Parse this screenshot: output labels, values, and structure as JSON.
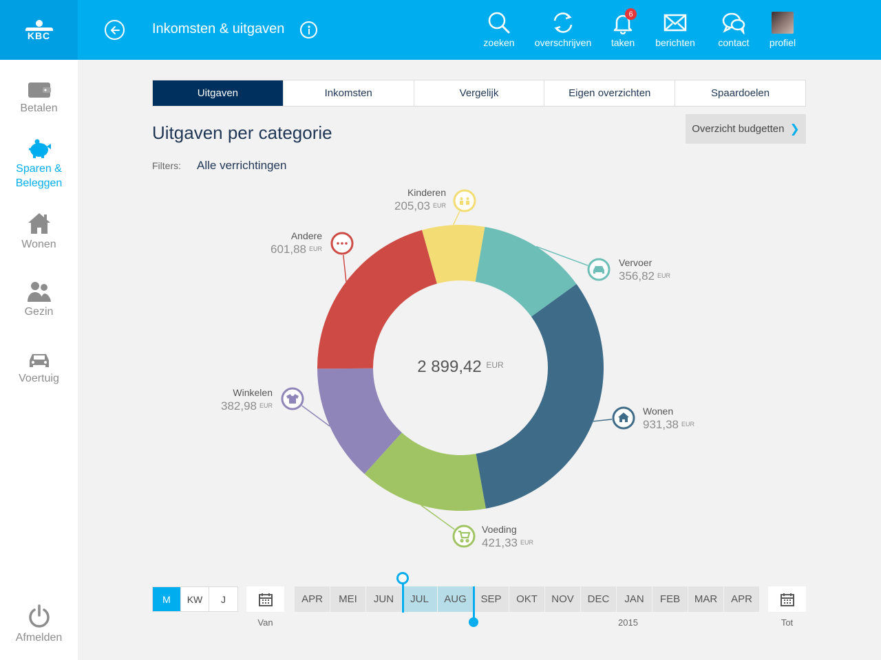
{
  "header": {
    "logo_text": "KBC",
    "title": "Inkomsten & uitgaven",
    "nav": [
      {
        "label": "zoeken",
        "icon": "search-icon"
      },
      {
        "label": "overschrijven",
        "icon": "transfer-icon"
      },
      {
        "label": "taken",
        "icon": "bell-icon",
        "badge": "6"
      },
      {
        "label": "berichten",
        "icon": "mail-icon"
      },
      {
        "label": "contact",
        "icon": "chat-icon"
      },
      {
        "label": "profiel",
        "icon": "avatar"
      }
    ]
  },
  "sidebar": {
    "items": [
      {
        "label": "Betalen",
        "icon": "wallet-icon"
      },
      {
        "label": "Sparen & Beleggen",
        "icon": "piggy-bank-icon",
        "active": true
      },
      {
        "label": "Wonen",
        "icon": "house-icon"
      },
      {
        "label": "Gezin",
        "icon": "family-icon"
      },
      {
        "label": "Voertuig",
        "icon": "car-icon"
      }
    ],
    "logout_label": "Afmelden"
  },
  "tabs": [
    "Uitgaven",
    "Inkomsten",
    "Vergelijk",
    "Eigen overzichten",
    "Spaardoelen"
  ],
  "active_tab": "Uitgaven",
  "main": {
    "section_title": "Uitgaven per categorie",
    "budget_button": "Overzicht budgetten",
    "filter_label": "Filters:",
    "filter_value": "Alle verrichtingen",
    "total": "2 899,42",
    "currency": "EUR"
  },
  "colors": {
    "accent": "#00aeef",
    "dark_blue": "#00315e"
  },
  "chart_data": {
    "type": "pie",
    "donut": true,
    "total": 2899.42,
    "unit": "EUR",
    "slices": [
      {
        "name": "Kinderen",
        "value": 205.03,
        "display": "205,03",
        "color": "#f3dc74",
        "icon": "children-icon"
      },
      {
        "name": "Vervoer",
        "value": 356.82,
        "display": "356,82",
        "color": "#6cbeb6",
        "icon": "car-icon"
      },
      {
        "name": "Wonen",
        "value": 931.38,
        "display": "931,38",
        "color": "#3e6b87",
        "icon": "house-icon"
      },
      {
        "name": "Voeding",
        "value": 421.33,
        "display": "421,33",
        "color": "#a0c464",
        "icon": "cart-icon"
      },
      {
        "name": "Winkelen",
        "value": 382.98,
        "display": "382,98",
        "color": "#9085b8",
        "icon": "shirt-icon"
      },
      {
        "name": "Andere",
        "value": 601.88,
        "display": "601,88",
        "color": "#cd4b44",
        "icon": "more-icon"
      }
    ]
  },
  "timeline": {
    "periods": [
      "M",
      "KW",
      "J"
    ],
    "active_period": "M",
    "from_label": "Van",
    "to_label": "Tot",
    "months": [
      "APR",
      "MEI",
      "JUN",
      "JUL",
      "AUG",
      "SEP",
      "OKT",
      "NOV",
      "DEC",
      "JAN",
      "FEB",
      "MAR",
      "APR"
    ],
    "selected_months": [
      "JUL",
      "AUG"
    ],
    "year_label": "2015"
  }
}
